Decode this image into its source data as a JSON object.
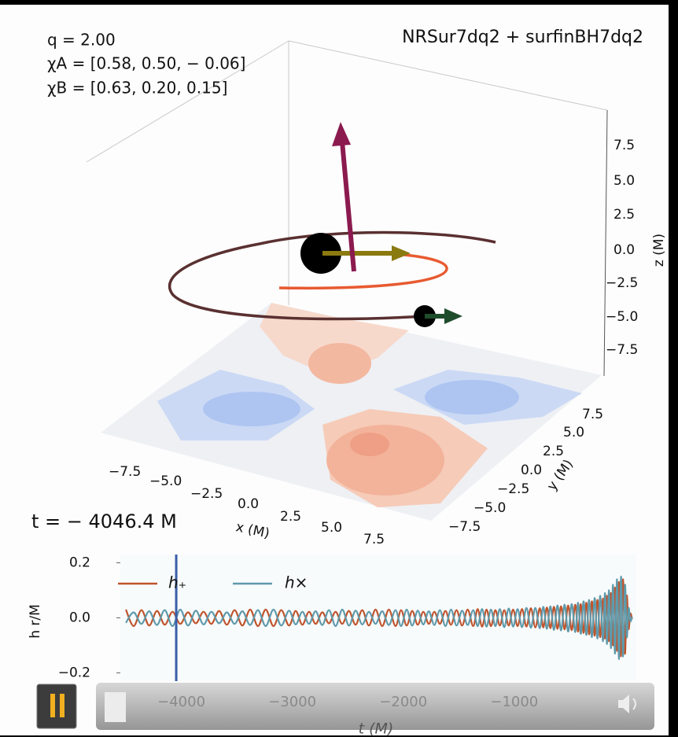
{
  "plot3d": {
    "title": "NRSur7dq2 + surfinBH7dq2",
    "annotations": [
      "q = 2.00",
      "χA = [0.58, 0.50, − 0.06]",
      "χB = [0.63, 0.20, 0.15]"
    ],
    "time_label": "t = − 4046.4 M",
    "x_label": "x (M)",
    "y_label": "y (M)",
    "z_label": "z (M)",
    "x_ticks": [
      "−7.5",
      "−5.0",
      "−2.5",
      "0.0",
      "2.5",
      "5.0",
      "7.5"
    ],
    "y_ticks": [
      "7.5",
      "5.0",
      "2.5",
      "0.0",
      "−2.5",
      "−5.0",
      "−7.5"
    ],
    "z_ticks": [
      "7.5",
      "5.0",
      "2.5",
      "0.0",
      "−2.5",
      "−5.0",
      "−7.5"
    ]
  },
  "chart_data": {
    "type": "line",
    "x_label": "t (M)",
    "y_label": "h r/M",
    "cursor": -4046.4,
    "xlim": [
      -4550,
      100
    ],
    "ylim": [
      -0.23,
      0.23
    ],
    "xticks": [
      {
        "value": -4000,
        "label": "−4000"
      },
      {
        "value": -3000,
        "label": "−3000"
      },
      {
        "value": -2000,
        "label": "−2000"
      },
      {
        "value": -1000,
        "label": "−1000"
      }
    ],
    "yticks": [
      {
        "value": -0.2,
        "label": "−0.2"
      },
      {
        "value": 0,
        "label": "0.0"
      },
      0.2
    ],
    "x": [
      -4500,
      -4430,
      -4360,
      -4290,
      -4220,
      -4150,
      -4080,
      -4010,
      -3940,
      -3870,
      -3800,
      -3730,
      -3660,
      -3590,
      -3520,
      -3450,
      -3380,
      -3310,
      -3240,
      -3170,
      -3100,
      -3030,
      -2970,
      -2910,
      -2850,
      -2790,
      -2730,
      -2670,
      -2610,
      -2550,
      -2490,
      -2430,
      -2370,
      -2310,
      -2250,
      -2190,
      -2130,
      -2070,
      -2020,
      -1970,
      -1920,
      -1870,
      -1820,
      -1770,
      -1720,
      -1670,
      -1620,
      -1570,
      -1520,
      -1470,
      -1420,
      -1370,
      -1330,
      -1290,
      -1250,
      -1210,
      -1170,
      -1130,
      -1090,
      -1050,
      -1010,
      -970,
      -930,
      -890,
      -850,
      -810,
      -770,
      -738,
      -706,
      -674,
      -642,
      -610,
      -578,
      -546,
      -514,
      -482,
      -450,
      -425,
      -400,
      -375,
      -350,
      -325,
      -300,
      -275,
      -250,
      -225,
      -200,
      -182,
      -164,
      -146,
      -128,
      -110,
      -92,
      -74,
      -56,
      -38,
      -20,
      -2,
      14,
      30,
      46,
      62
    ],
    "series": [
      {
        "name": "h₊",
        "color": "#c0542c",
        "values": [
          0.03,
          -0.03,
          0.028,
          -0.028,
          0.025,
          -0.025,
          0.022,
          -0.022,
          0.02,
          -0.02,
          0.022,
          -0.022,
          0.025,
          -0.025,
          0.028,
          -0.028,
          0.03,
          -0.03,
          0.03,
          -0.03,
          0.028,
          -0.028,
          0.025,
          -0.025,
          0.022,
          -0.022,
          0.02,
          -0.02,
          0.022,
          -0.022,
          0.025,
          -0.025,
          0.028,
          -0.028,
          0.03,
          -0.03,
          0.03,
          -0.03,
          0.028,
          -0.028,
          0.025,
          -0.025,
          0.022,
          -0.022,
          0.022,
          -0.022,
          0.025,
          -0.025,
          0.028,
          -0.028,
          0.03,
          -0.03,
          0.032,
          -0.032,
          0.03,
          -0.03,
          0.028,
          -0.028,
          0.028,
          -0.028,
          0.03,
          -0.03,
          0.032,
          -0.032,
          0.035,
          -0.035,
          0.035,
          -0.035,
          0.038,
          -0.038,
          0.04,
          -0.04,
          0.042,
          -0.042,
          0.045,
          -0.045,
          0.048,
          -0.05,
          0.05,
          -0.055,
          0.055,
          -0.06,
          0.06,
          -0.065,
          0.065,
          -0.07,
          0.07,
          -0.075,
          0.08,
          -0.085,
          0.09,
          -0.1,
          0.11,
          -0.12,
          0.13,
          -0.14,
          0.14,
          -0.13,
          0.08,
          -0.04,
          0.015,
          -0.005
        ]
      },
      {
        "name": "h×",
        "color": "#5f9aab",
        "values": [
          -0.018,
          0.02,
          -0.022,
          0.024,
          -0.026,
          0.028,
          -0.03,
          0.03,
          -0.028,
          0.026,
          -0.024,
          0.022,
          -0.02,
          0.02,
          -0.022,
          0.024,
          -0.026,
          0.028,
          -0.03,
          0.03,
          -0.028,
          0.026,
          -0.024,
          0.022,
          -0.022,
          0.024,
          -0.026,
          0.028,
          -0.03,
          0.03,
          -0.028,
          0.026,
          -0.024,
          0.022,
          -0.022,
          0.024,
          -0.026,
          0.028,
          -0.03,
          0.03,
          -0.028,
          0.026,
          -0.024,
          0.024,
          -0.026,
          0.028,
          -0.03,
          0.03,
          -0.028,
          0.026,
          -0.026,
          0.028,
          -0.03,
          0.032,
          -0.032,
          0.03,
          -0.03,
          0.032,
          -0.034,
          0.034,
          -0.032,
          0.032,
          -0.034,
          0.036,
          -0.036,
          0.036,
          -0.038,
          0.04,
          -0.04,
          0.042,
          -0.044,
          0.045,
          -0.046,
          0.048,
          -0.05,
          0.05,
          -0.052,
          0.055,
          -0.058,
          0.06,
          -0.062,
          0.065,
          -0.07,
          0.072,
          -0.075,
          0.08,
          -0.085,
          0.09,
          -0.095,
          0.1,
          -0.11,
          0.12,
          -0.13,
          0.14,
          -0.15,
          0.15,
          -0.14,
          0.12,
          -0.07,
          0.035,
          -0.012,
          0.004
        ]
      }
    ]
  }
}
